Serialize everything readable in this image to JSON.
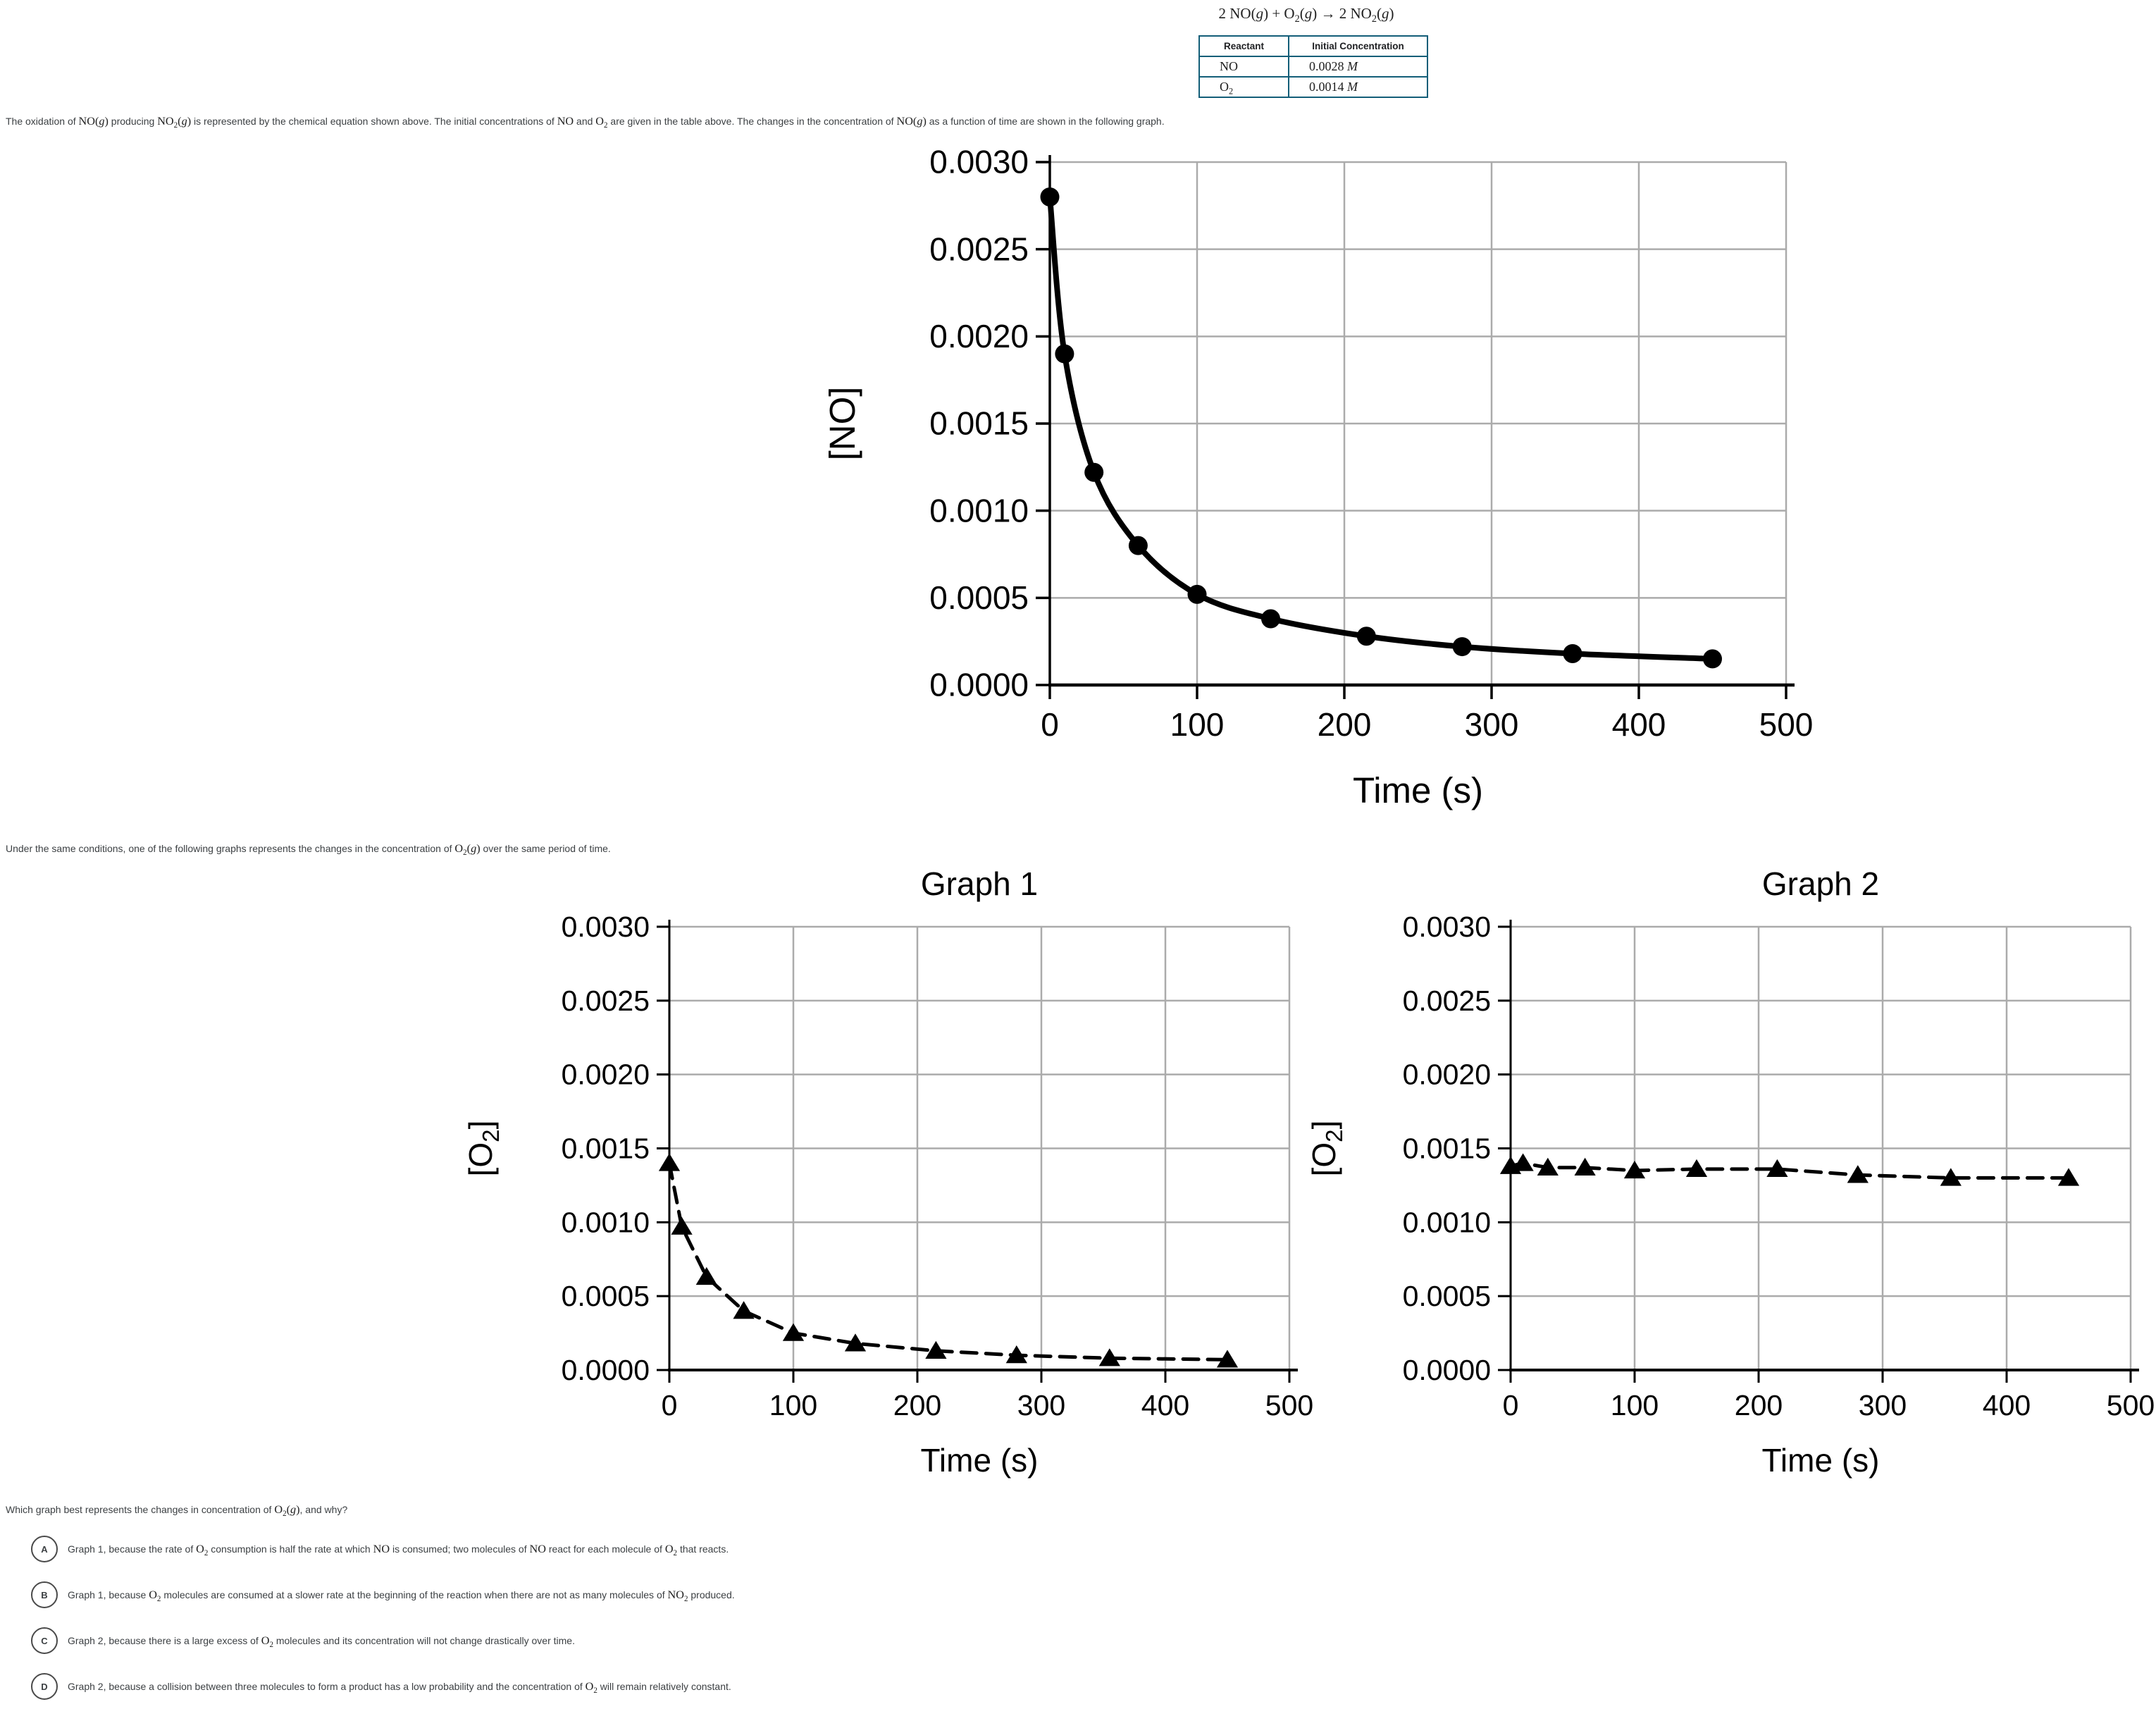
{
  "equation": "2 NO(g) + O2(g) → 2 NO2(g)",
  "table": {
    "headers": [
      "Reactant",
      "Initial Concentration"
    ],
    "rows": [
      {
        "reactant": "NO",
        "concentration": "0.0028 M"
      },
      {
        "reactant": "O2",
        "concentration": "0.0014 M"
      }
    ]
  },
  "texts": {
    "intro": "The oxidation of {{NO(g)}} producing {{NO2(g)}} is represented by the chemical equation shown above. The initial concentrations of {{NO}} and {{O2}} are given in the table above. The changes in the concentration of {{NO(g)}} as a function of time are shown in the following graph.",
    "between": "Under the same conditions, one of the following graphs represents the changes in the concentration of {{O2(g)}} over the same period of time.",
    "question": "Which graph best represents the changes in concentration of {{O2(g)}}, and why?"
  },
  "options": [
    {
      "letter": "A",
      "text": "Graph 1, because the rate of {{O2}} consumption is half the rate at which {{NO}} is consumed; two molecules of {{NO}} react for each molecule of {{O2}} that reacts."
    },
    {
      "letter": "B",
      "text": "Graph 1, because {{O2}} molecules are consumed at a slower rate at the beginning of the reaction when there are not as many molecules of {{NO2}} produced."
    },
    {
      "letter": "C",
      "text": "Graph 2, because there is a large excess of {{O2}} molecules and its concentration will not change drastically over time."
    },
    {
      "letter": "D",
      "text": "Graph 2, because a collision between three molecules to form a product has a low probability and the concentration of {{O2}} will remain relatively constant."
    }
  ],
  "colors": {
    "table_border": "#135e78",
    "grid": "#ababab",
    "ink": "#000000",
    "body_text": "#3c4043"
  },
  "chart_data": [
    {
      "id": "no_vs_time",
      "type": "scatter",
      "title": "",
      "xlabel": "Time (s)",
      "ylabel": "[NO]",
      "marker": "circle",
      "line": "solid-smooth",
      "grid": true,
      "legend": "none",
      "xlim": [
        0,
        500
      ],
      "ylim": [
        0,
        0.003
      ],
      "xticks": [
        0,
        100,
        200,
        300,
        400,
        500
      ],
      "xtick_labels": [
        "0",
        "100",
        "200",
        "300",
        "400",
        "500"
      ],
      "yticks": [
        0,
        0.0005,
        0.001,
        0.0015,
        0.002,
        0.0025,
        0.003
      ],
      "ytick_labels": [
        "0.0000",
        "0.0005",
        "0.0010",
        "0.0015",
        "0.0020",
        "0.0025",
        "0.0030"
      ],
      "x": [
        0,
        10,
        30,
        60,
        100,
        150,
        215,
        280,
        355,
        450
      ],
      "y": [
        0.0028,
        0.0019,
        0.00122,
        0.0008,
        0.00052,
        0.00038,
        0.00028,
        0.00022,
        0.00018,
        0.00015
      ]
    },
    {
      "id": "graph1_o2_vs_time",
      "type": "scatter",
      "title": "Graph 1",
      "xlabel": "Time (s)",
      "ylabel": "[O2]",
      "marker": "triangle",
      "line": "dashed",
      "grid": true,
      "legend": "none",
      "xlim": [
        0,
        500
      ],
      "ylim": [
        0,
        0.003
      ],
      "xticks": [
        0,
        100,
        200,
        300,
        400,
        500
      ],
      "xtick_labels": [
        "0",
        "100",
        "200",
        "300",
        "400",
        "500"
      ],
      "yticks": [
        0,
        0.0005,
        0.001,
        0.0015,
        0.002,
        0.0025,
        0.003
      ],
      "ytick_labels": [
        "0.0000",
        "0.0005",
        "0.0010",
        "0.0015",
        "0.0020",
        "0.0025",
        "0.0030"
      ],
      "x": [
        0,
        10,
        30,
        60,
        100,
        150,
        215,
        280,
        355,
        450
      ],
      "y": [
        0.0014,
        0.00097,
        0.00063,
        0.0004,
        0.00025,
        0.00018,
        0.00013,
        0.0001,
        8e-05,
        7e-05
      ]
    },
    {
      "id": "graph2_o2_vs_time",
      "type": "scatter",
      "title": "Graph 2",
      "xlabel": "Time (s)",
      "ylabel": "[O2]",
      "marker": "triangle",
      "line": "dashed",
      "grid": true,
      "legend": "none",
      "xlim": [
        0,
        500
      ],
      "ylim": [
        0,
        0.003
      ],
      "xticks": [
        0,
        100,
        200,
        300,
        400,
        500
      ],
      "xtick_labels": [
        "0",
        "100",
        "200",
        "300",
        "400",
        "500"
      ],
      "yticks": [
        0,
        0.0005,
        0.001,
        0.0015,
        0.002,
        0.0025,
        0.003
      ],
      "ytick_labels": [
        "0.0000",
        "0.0005",
        "0.0010",
        "0.0015",
        "0.0020",
        "0.0025",
        "0.0030"
      ],
      "x": [
        0,
        10,
        30,
        60,
        100,
        150,
        215,
        280,
        355,
        450
      ],
      "y": [
        0.00138,
        0.0014,
        0.00137,
        0.00137,
        0.00135,
        0.00136,
        0.00136,
        0.00132,
        0.0013,
        0.0013
      ]
    }
  ]
}
